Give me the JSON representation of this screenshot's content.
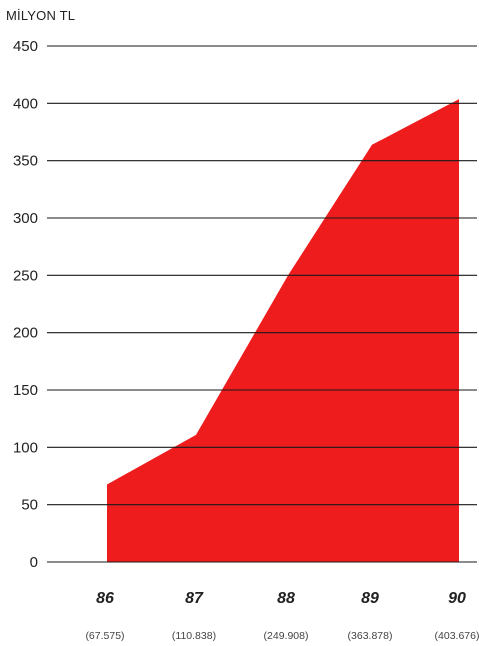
{
  "chart_data": {
    "type": "area",
    "ylabel": "MİLYON TL",
    "yticks": [
      0,
      50,
      100,
      150,
      200,
      250,
      300,
      350,
      400,
      450
    ],
    "ylim": [
      0,
      450
    ],
    "categories": [
      "86",
      "87",
      "88",
      "89",
      "90"
    ],
    "category_sublabels": [
      "(67.575)",
      "(110.838)",
      "(249.908)",
      "(363.878)",
      "(403.676)"
    ],
    "values": [
      67.575,
      110.838,
      249.908,
      363.878,
      403.676
    ],
    "grid": true,
    "fill_color": "#ee1c1c"
  }
}
